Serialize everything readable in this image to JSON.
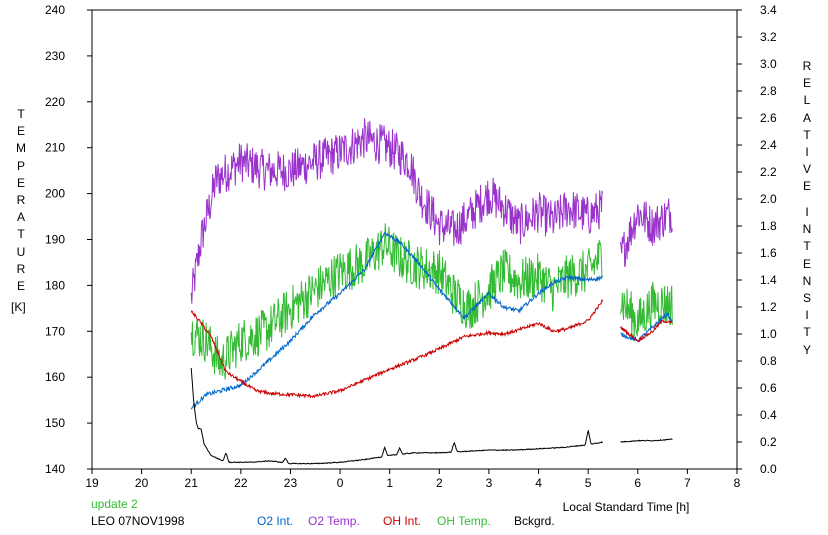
{
  "chart_data": {
    "type": "line",
    "left_axis_label": "TEMPERATURE",
    "left_axis_unit": "[K]",
    "right_axis_label": [
      "RELATIVE",
      "INTENSITY"
    ],
    "xlabel": "Local Standard Time [h]",
    "x_ticks": [
      "19",
      "20",
      "21",
      "22",
      "23",
      "0",
      "1",
      "2",
      "3",
      "4",
      "5",
      "6",
      "7",
      "8"
    ],
    "y_left_ticks": [
      "140",
      "150",
      "160",
      "170",
      "180",
      "190",
      "200",
      "210",
      "220",
      "230",
      "240"
    ],
    "y_right_ticks": [
      "0.0",
      "0.2",
      "0.4",
      "0.6",
      "0.8",
      "1.0",
      "1.2",
      "1.4",
      "1.6",
      "1.8",
      "2.0",
      "2.2",
      "2.4",
      "2.6",
      "2.8",
      "3.0",
      "3.2",
      "3.4"
    ],
    "xlim": [
      19,
      32
    ],
    "ylim_left": [
      140,
      240
    ],
    "ylim_right": [
      0,
      3.4
    ],
    "gap": [
      29.3,
      29.65
    ],
    "status": "update 2",
    "station": "LEO 07NOV1998",
    "series": [
      {
        "name": "O2 Int.",
        "axis": "right",
        "color": "#0066cc",
        "noise": 0.015,
        "points": [
          [
            21.0,
            0.45
          ],
          [
            21.3,
            0.55
          ],
          [
            21.6,
            0.58
          ],
          [
            22.0,
            0.62
          ],
          [
            22.5,
            0.78
          ],
          [
            23.0,
            0.95
          ],
          [
            23.5,
            1.15
          ],
          [
            24.0,
            1.3
          ],
          [
            24.5,
            1.48
          ],
          [
            24.9,
            1.75
          ],
          [
            25.2,
            1.68
          ],
          [
            25.6,
            1.52
          ],
          [
            26.0,
            1.33
          ],
          [
            26.2,
            1.25
          ],
          [
            26.5,
            1.12
          ],
          [
            27.0,
            1.3
          ],
          [
            27.3,
            1.2
          ],
          [
            27.6,
            1.17
          ],
          [
            28.0,
            1.3
          ],
          [
            28.3,
            1.38
          ],
          [
            28.6,
            1.42
          ],
          [
            29.0,
            1.4
          ],
          [
            29.3,
            1.42
          ],
          [
            29.65,
            1.0
          ],
          [
            30.0,
            0.95
          ],
          [
            30.3,
            1.05
          ],
          [
            30.6,
            1.15
          ],
          [
            30.7,
            1.08
          ]
        ]
      },
      {
        "name": "O2 Temp.",
        "axis": "left",
        "color": "#9933cc",
        "noise": 4.5,
        "points": [
          [
            21.0,
            177
          ],
          [
            21.2,
            190
          ],
          [
            21.5,
            203
          ],
          [
            22.0,
            207
          ],
          [
            22.5,
            205
          ],
          [
            23.0,
            205
          ],
          [
            23.5,
            207
          ],
          [
            24.0,
            209
          ],
          [
            24.5,
            212
          ],
          [
            25.0,
            210
          ],
          [
            25.4,
            207
          ],
          [
            25.6,
            200
          ],
          [
            26.0,
            193
          ],
          [
            26.3,
            192
          ],
          [
            26.6,
            195
          ],
          [
            27.0,
            200
          ],
          [
            27.3,
            197
          ],
          [
            27.6,
            193
          ],
          [
            28.0,
            196
          ],
          [
            28.3,
            194
          ],
          [
            28.6,
            197
          ],
          [
            29.0,
            195
          ],
          [
            29.3,
            197
          ],
          [
            29.65,
            186
          ],
          [
            30.0,
            196
          ],
          [
            30.3,
            193
          ],
          [
            30.7,
            196
          ]
        ]
      },
      {
        "name": "OH Int.",
        "axis": "right",
        "color": "#cc0000",
        "noise": 0.012,
        "points": [
          [
            21.0,
            1.17
          ],
          [
            21.2,
            1.08
          ],
          [
            21.4,
            0.98
          ],
          [
            21.7,
            0.72
          ],
          [
            22.0,
            0.65
          ],
          [
            22.3,
            0.58
          ],
          [
            22.6,
            0.56
          ],
          [
            23.0,
            0.55
          ],
          [
            23.5,
            0.54
          ],
          [
            24.0,
            0.58
          ],
          [
            24.5,
            0.66
          ],
          [
            25.0,
            0.74
          ],
          [
            25.5,
            0.81
          ],
          [
            26.0,
            0.89
          ],
          [
            26.5,
            0.98
          ],
          [
            27.0,
            1.01
          ],
          [
            27.3,
            1.0
          ],
          [
            27.6,
            1.03
          ],
          [
            28.0,
            1.08
          ],
          [
            28.3,
            1.02
          ],
          [
            28.6,
            1.04
          ],
          [
            29.0,
            1.1
          ],
          [
            29.3,
            1.25
          ],
          [
            29.65,
            1.05
          ],
          [
            30.0,
            0.95
          ],
          [
            30.3,
            1.02
          ],
          [
            30.5,
            1.1
          ],
          [
            30.7,
            1.08
          ]
        ]
      },
      {
        "name": "OH Temp.",
        "axis": "left",
        "color": "#33bb33",
        "noise": 5,
        "points": [
          [
            21.0,
            170
          ],
          [
            21.3,
            168
          ],
          [
            21.6,
            163
          ],
          [
            22.0,
            168
          ],
          [
            22.5,
            170
          ],
          [
            23.0,
            175
          ],
          [
            23.5,
            179
          ],
          [
            24.0,
            183
          ],
          [
            24.5,
            185
          ],
          [
            24.9,
            189
          ],
          [
            25.2,
            186
          ],
          [
            25.6,
            184
          ],
          [
            26.0,
            183
          ],
          [
            26.3,
            178
          ],
          [
            26.6,
            175
          ],
          [
            27.0,
            179
          ],
          [
            27.3,
            183
          ],
          [
            27.6,
            181
          ],
          [
            28.0,
            182
          ],
          [
            28.3,
            179
          ],
          [
            28.6,
            182
          ],
          [
            29.0,
            183
          ],
          [
            29.3,
            187
          ],
          [
            29.65,
            177
          ],
          [
            30.0,
            172
          ],
          [
            30.3,
            176
          ],
          [
            30.7,
            176
          ]
        ]
      },
      {
        "name": "Bckgrd.",
        "axis": "right",
        "color": "#000000",
        "noise": 0.003,
        "points": [
          [
            21.0,
            0.75
          ],
          [
            21.05,
            0.5
          ],
          [
            21.1,
            0.35
          ],
          [
            21.2,
            0.22
          ],
          [
            21.4,
            0.1
          ],
          [
            21.7,
            0.05
          ],
          [
            22.2,
            0.05
          ],
          [
            22.6,
            0.06
          ],
          [
            23.0,
            0.04
          ],
          [
            23.5,
            0.04
          ],
          [
            24.0,
            0.05
          ],
          [
            24.5,
            0.07
          ],
          [
            25.0,
            0.1
          ],
          [
            25.5,
            0.12
          ],
          [
            26.0,
            0.12
          ],
          [
            26.5,
            0.13
          ],
          [
            27.0,
            0.14
          ],
          [
            27.5,
            0.14
          ],
          [
            28.0,
            0.15
          ],
          [
            28.5,
            0.16
          ],
          [
            29.0,
            0.18
          ],
          [
            29.3,
            0.2
          ],
          [
            29.65,
            0.2
          ],
          [
            30.0,
            0.21
          ],
          [
            30.3,
            0.21
          ],
          [
            30.7,
            0.22
          ]
        ],
        "bumps": [
          [
            21.2,
            0.13
          ],
          [
            21.7,
            0.12
          ],
          [
            22.9,
            0.06
          ],
          [
            24.9,
            0.11
          ],
          [
            25.2,
            0.08
          ],
          [
            26.3,
            0.12
          ],
          [
            29.5,
            0.28
          ],
          [
            29.0,
            0.18
          ]
        ]
      }
    ]
  }
}
